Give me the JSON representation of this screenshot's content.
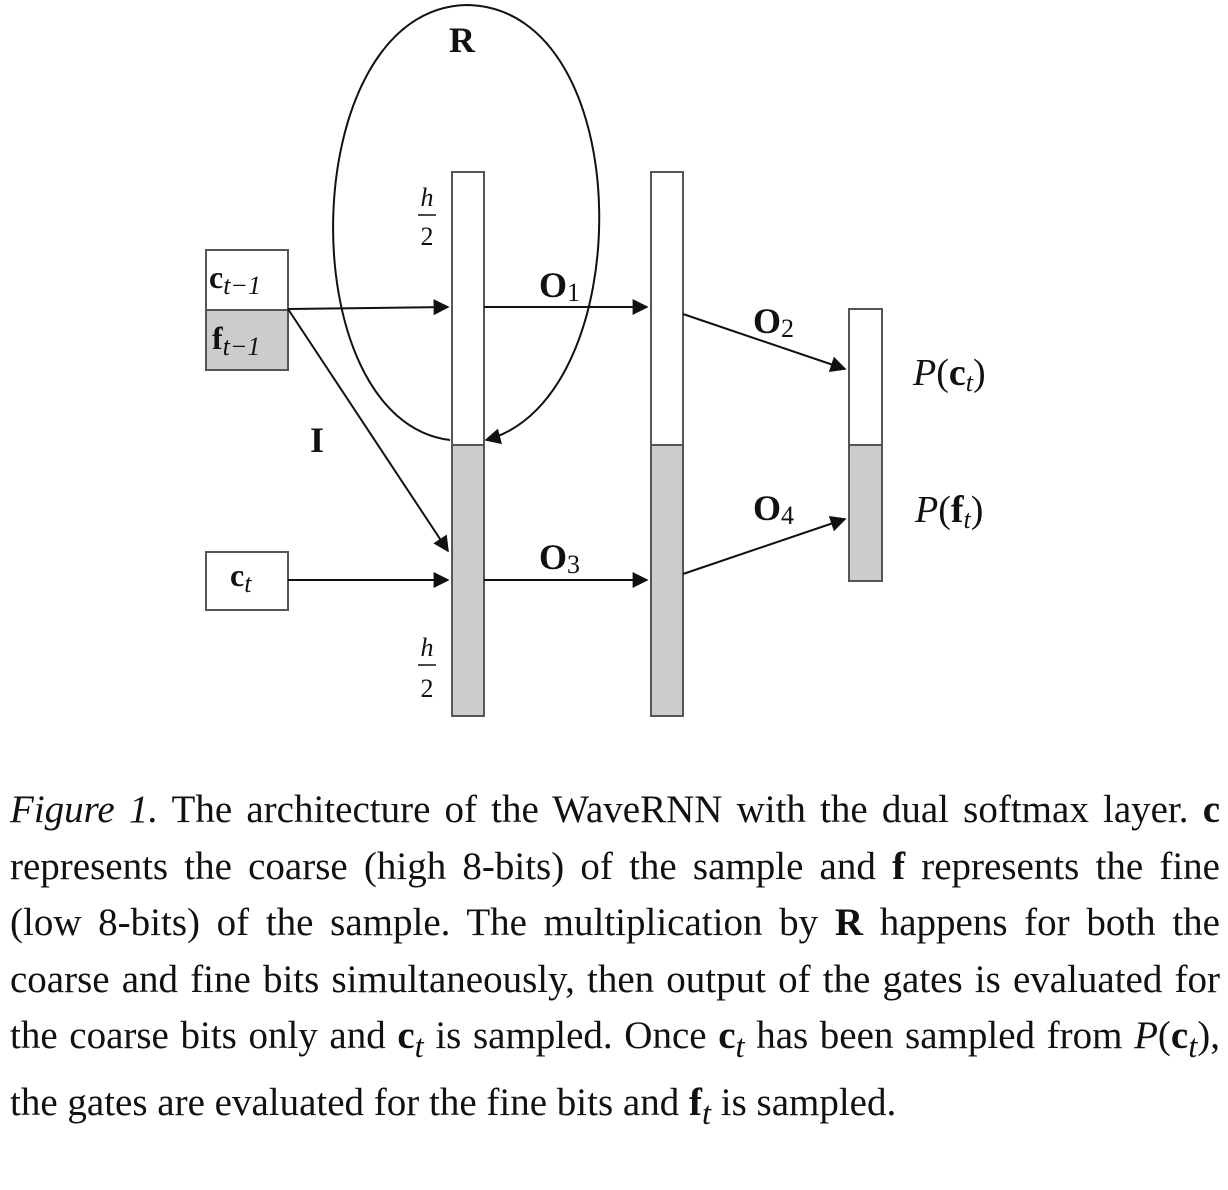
{
  "figure": {
    "colors": {
      "stroke": "#333333",
      "fill_white": "#ffffff",
      "fill_gray": "#cccccc"
    },
    "labels": {
      "R": {
        "main": "R"
      },
      "I": {
        "main": "I"
      },
      "O1": {
        "main": "O",
        "sub": "1"
      },
      "O2": {
        "main": "O",
        "sub": "2"
      },
      "O3": {
        "main": "O",
        "sub": "3"
      },
      "O4": {
        "main": "O",
        "sub": "4"
      },
      "c_prev": {
        "main": "c",
        "sub": "t−1"
      },
      "f_prev": {
        "main": "f",
        "sub": "t−1"
      },
      "c_cur": {
        "main": "c",
        "sub": "t"
      },
      "h_half_top": {
        "num": "h",
        "den": "2"
      },
      "h_half_bottom": {
        "num": "h",
        "den": "2"
      },
      "p_coarse": {
        "fn": "P",
        "open": "(",
        "arg": "c",
        "sub": "t",
        "close": ")"
      },
      "p_fine": {
        "fn": "P",
        "open": "(",
        "arg": "f",
        "sub": "t",
        "close": ")"
      }
    }
  },
  "caption": {
    "label": "Figure 1.",
    "t1": " The architecture of the WaveRNN with the dual softmax layer. ",
    "c": "c",
    "t2": " represents the coarse (high 8-bits) of the sample and ",
    "f": "f",
    "t3": " represents the fine (low 8-bits) of the sample. The multiplication by ",
    "R": "R",
    "t4": " happens for both the coarse and fine bits simultaneously, then output of the gates is evaluated for the coarse bits only and ",
    "ct1": "c",
    "ct1_sub": "t",
    "t5": " is sampled. Once ",
    "ct2": "c",
    "ct2_sub": "t",
    "t6": " has been sampled from ",
    "P": "P",
    "open": "(",
    "ct3": "c",
    "ct3_sub": "t",
    "close": ")",
    "t7": ", the gates are evaluated for the fine bits and ",
    "ft": "f",
    "ft_sub": "t",
    "t8": " is sampled."
  }
}
